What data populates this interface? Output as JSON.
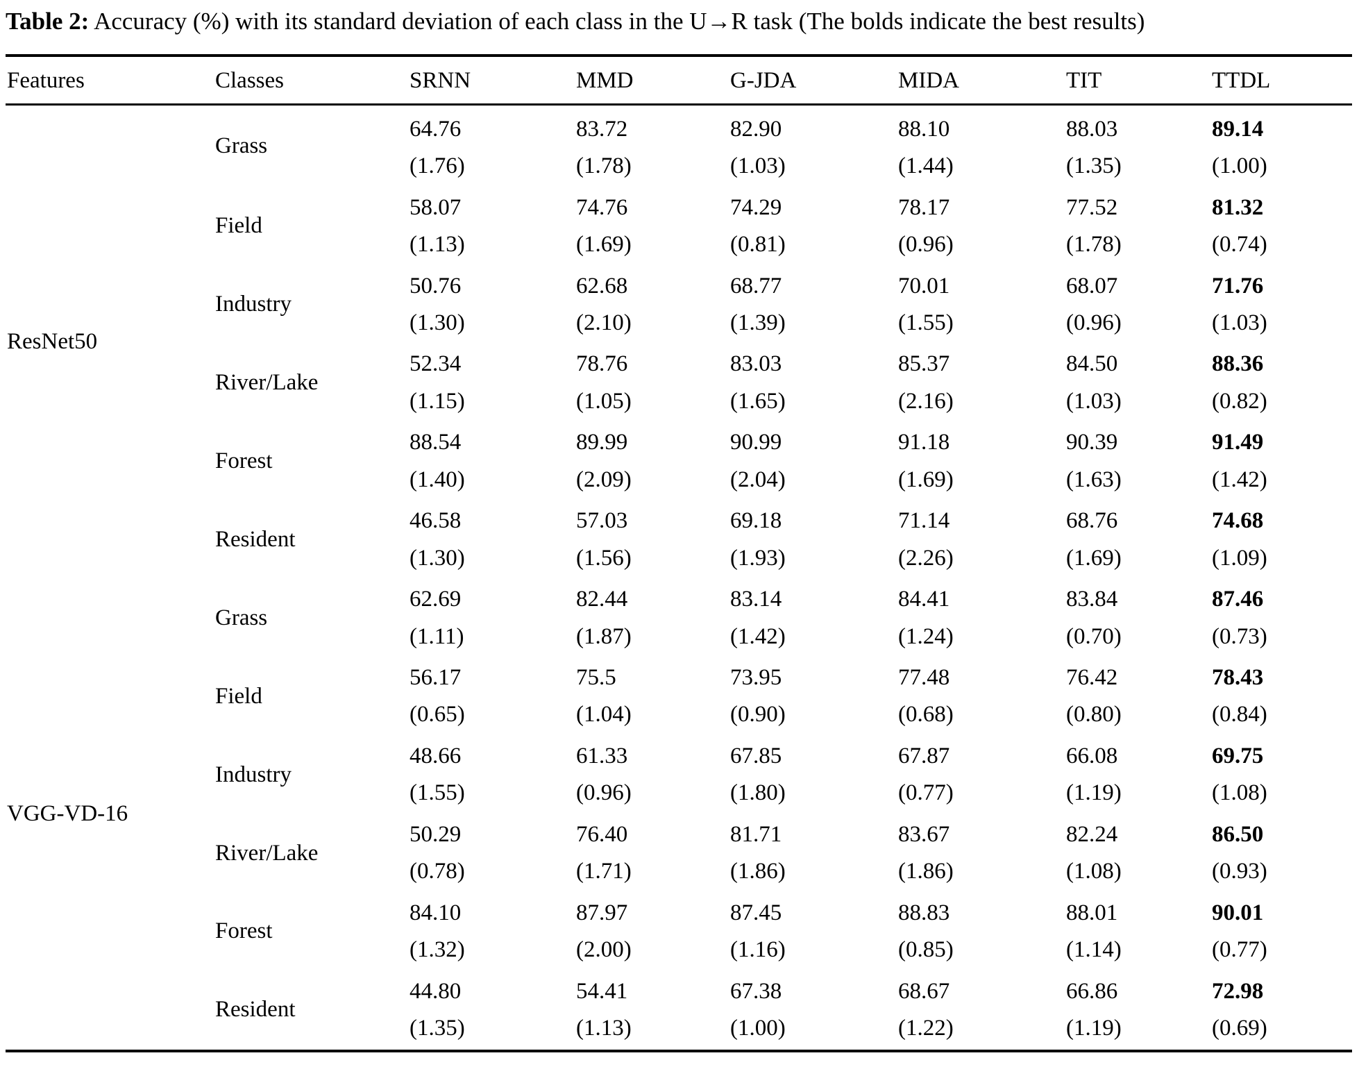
{
  "caption": {
    "label": "Table 2:",
    "text": " Accuracy (%) with its standard deviation of each class in the U→R task (The bolds indicate the best results)"
  },
  "table": {
    "columns": [
      "Features",
      "Classes",
      "SRNN",
      "MMD",
      "G-JDA",
      "MIDA",
      "TIT",
      "TTDL"
    ],
    "bold_column": "TTDL",
    "groups": [
      {
        "feature": "ResNet50",
        "rows": [
          {
            "class": "Grass",
            "cells": [
              [
                "64.76",
                "(1.76)"
              ],
              [
                "83.72",
                "(1.78)"
              ],
              [
                "82.90",
                "(1.03)"
              ],
              [
                "88.10",
                "(1.44)"
              ],
              [
                "88.03",
                "(1.35)"
              ],
              [
                "89.14",
                "(1.00)"
              ]
            ]
          },
          {
            "class": "Field",
            "cells": [
              [
                "58.07",
                "(1.13)"
              ],
              [
                "74.76",
                "(1.69)"
              ],
              [
                "74.29",
                "(0.81)"
              ],
              [
                "78.17",
                "(0.96)"
              ],
              [
                "77.52",
                "(1.78)"
              ],
              [
                "81.32",
                "(0.74)"
              ]
            ]
          },
          {
            "class": "Industry",
            "cells": [
              [
                "50.76",
                "(1.30)"
              ],
              [
                "62.68",
                "(2.10)"
              ],
              [
                "68.77",
                "(1.39)"
              ],
              [
                "70.01",
                "(1.55)"
              ],
              [
                "68.07",
                "(0.96)"
              ],
              [
                "71.76",
                "(1.03)"
              ]
            ]
          },
          {
            "class": "River/Lake",
            "cells": [
              [
                "52.34",
                "(1.15)"
              ],
              [
                "78.76",
                "(1.05)"
              ],
              [
                "83.03",
                "(1.65)"
              ],
              [
                "85.37",
                "(2.16)"
              ],
              [
                "84.50",
                "(1.03)"
              ],
              [
                "88.36",
                "(0.82)"
              ]
            ]
          },
          {
            "class": "Forest",
            "cells": [
              [
                "88.54",
                "(1.40)"
              ],
              [
                "89.99",
                "(2.09)"
              ],
              [
                "90.99",
                "(2.04)"
              ],
              [
                "91.18",
                "(1.69)"
              ],
              [
                "90.39",
                "(1.63)"
              ],
              [
                "91.49",
                "(1.42)"
              ]
            ]
          },
          {
            "class": "Resident",
            "cells": [
              [
                "46.58",
                "(1.30)"
              ],
              [
                "57.03",
                "(1.56)"
              ],
              [
                "69.18",
                "(1.93)"
              ],
              [
                "71.14",
                "(2.26)"
              ],
              [
                "68.76",
                "(1.69)"
              ],
              [
                "74.68",
                "(1.09)"
              ]
            ]
          }
        ]
      },
      {
        "feature": "VGG-VD-16",
        "rows": [
          {
            "class": "Grass",
            "cells": [
              [
                "62.69",
                "(1.11)"
              ],
              [
                "82.44",
                "(1.87)"
              ],
              [
                "83.14",
                "(1.42)"
              ],
              [
                "84.41",
                "(1.24)"
              ],
              [
                "83.84",
                "(0.70)"
              ],
              [
                "87.46",
                "(0.73)"
              ]
            ]
          },
          {
            "class": "Field",
            "cells": [
              [
                "56.17",
                "(0.65)"
              ],
              [
                "75.5",
                "(1.04)"
              ],
              [
                "73.95",
                "(0.90)"
              ],
              [
                "77.48",
                "(0.68)"
              ],
              [
                "76.42",
                "(0.80)"
              ],
              [
                "78.43",
                "(0.84)"
              ]
            ]
          },
          {
            "class": "Industry",
            "cells": [
              [
                "48.66",
                "(1.55)"
              ],
              [
                "61.33",
                "(0.96)"
              ],
              [
                "67.85",
                "(1.80)"
              ],
              [
                "67.87",
                "(0.77)"
              ],
              [
                "66.08",
                "(1.19)"
              ],
              [
                "69.75",
                "(1.08)"
              ]
            ]
          },
          {
            "class": "River/Lake",
            "cells": [
              [
                "50.29",
                "(0.78)"
              ],
              [
                "76.40",
                "(1.71)"
              ],
              [
                "81.71",
                "(1.86)"
              ],
              [
                "83.67",
                "(1.86)"
              ],
              [
                "82.24",
                "(1.08)"
              ],
              [
                "86.50",
                "(0.93)"
              ]
            ]
          },
          {
            "class": "Forest",
            "cells": [
              [
                "84.10",
                "(1.32)"
              ],
              [
                "87.97",
                "(2.00)"
              ],
              [
                "87.45",
                "(1.16)"
              ],
              [
                "88.83",
                "(0.85)"
              ],
              [
                "88.01",
                "(1.14)"
              ],
              [
                "90.01",
                "(0.77)"
              ]
            ]
          },
          {
            "class": "Resident",
            "cells": [
              [
                "44.80",
                "(1.35)"
              ],
              [
                "54.41",
                "(1.13)"
              ],
              [
                "67.38",
                "(1.00)"
              ],
              [
                "68.67",
                "(1.22)"
              ],
              [
                "66.86",
                "(1.19)"
              ],
              [
                "72.98",
                "(0.69)"
              ]
            ]
          }
        ]
      }
    ]
  }
}
